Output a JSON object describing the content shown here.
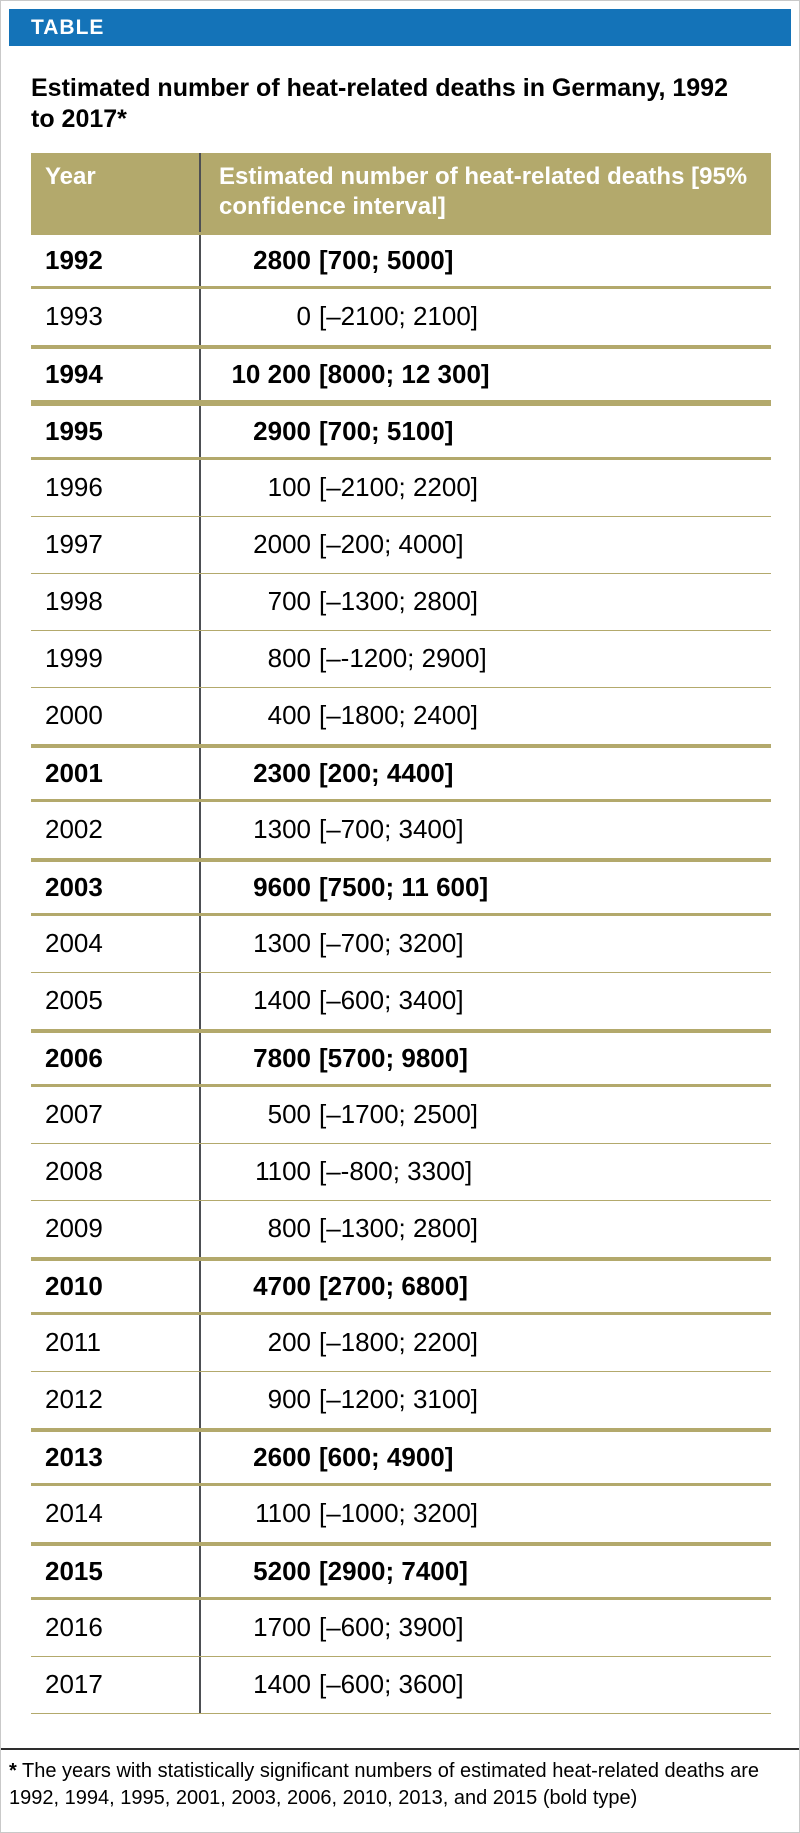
{
  "page": {
    "tag_label": "TABLE",
    "title": "Estimated number of heat-related deaths in Germany, 1992 to 2017*"
  },
  "table": {
    "columns": {
      "year": "Year",
      "value": "Estimated number of heat-related deaths [95% confidence interval]"
    },
    "rows": [
      {
        "year": "1992",
        "num": "2800",
        "ci": "[700; 5000]",
        "bold": true
      },
      {
        "year": "1993",
        "num": "0",
        "ci": "[–2100; 2100]",
        "bold": false
      },
      {
        "year": "1994",
        "num": "10 200",
        "ci": "[8000; 12 300]",
        "bold": true
      },
      {
        "year": "1995",
        "num": "2900",
        "ci": "[700; 5100]",
        "bold": true
      },
      {
        "year": "1996",
        "num": "100",
        "ci": "[–2100; 2200]",
        "bold": false
      },
      {
        "year": "1997",
        "num": "2000",
        "ci": "[–200; 4000]",
        "bold": false
      },
      {
        "year": "1998",
        "num": "700",
        "ci": "[–1300; 2800]",
        "bold": false
      },
      {
        "year": "1999",
        "num": "800",
        "ci": "[–-1200; 2900]",
        "bold": false
      },
      {
        "year": "2000",
        "num": "400",
        "ci": "[–1800; 2400]",
        "bold": false
      },
      {
        "year": "2001",
        "num": "2300",
        "ci": "[200; 4400]",
        "bold": true
      },
      {
        "year": "2002",
        "num": "1300",
        "ci": "[–700; 3400]",
        "bold": false
      },
      {
        "year": "2003",
        "num": "9600",
        "ci": "[7500; 11 600]",
        "bold": true
      },
      {
        "year": "2004",
        "num": "1300",
        "ci": "[–700; 3200]",
        "bold": false
      },
      {
        "year": "2005",
        "num": "1400",
        "ci": "[–600; 3400]",
        "bold": false
      },
      {
        "year": "2006",
        "num": "7800",
        "ci": "[5700; 9800]",
        "bold": true
      },
      {
        "year": "2007",
        "num": "500",
        "ci": "[–1700; 2500]",
        "bold": false
      },
      {
        "year": "2008",
        "num": "1100",
        "ci": "[–-800; 3300]",
        "bold": false
      },
      {
        "year": "2009",
        "num": "800",
        "ci": "[–1300; 2800]",
        "bold": false
      },
      {
        "year": "2010",
        "num": "4700",
        "ci": "[2700; 6800]",
        "bold": true
      },
      {
        "year": "2011",
        "num": "200",
        "ci": "[–1800; 2200]",
        "bold": false
      },
      {
        "year": "2012",
        "num": "900",
        "ci": "[–1200; 3100]",
        "bold": false
      },
      {
        "year": "2013",
        "num": "2600",
        "ci": "[600; 4900]",
        "bold": true
      },
      {
        "year": "2014",
        "num": "1100",
        "ci": "[–1000; 3200]",
        "bold": false
      },
      {
        "year": "2015",
        "num": "5200",
        "ci": "[2900; 7400]",
        "bold": true
      },
      {
        "year": "2016",
        "num": "1700",
        "ci": "[–600; 3900]",
        "bold": false
      },
      {
        "year": "2017",
        "num": "1400",
        "ci": "[–600; 3600]",
        "bold": false
      }
    ]
  },
  "footnote": {
    "marker": "*",
    "text": " The years with statistically significant numbers of estimated heat-related deaths are 1992, 1994, 1995, 2001, 2003, 2006, 2010, 2013, and 2015 (bold type)"
  },
  "colors": {
    "accent_blue": "#1473b8",
    "header_khaki": "#b3a96c",
    "vertical_rule": "#4d4f53",
    "footnote_rule": "#2e2e2e"
  }
}
